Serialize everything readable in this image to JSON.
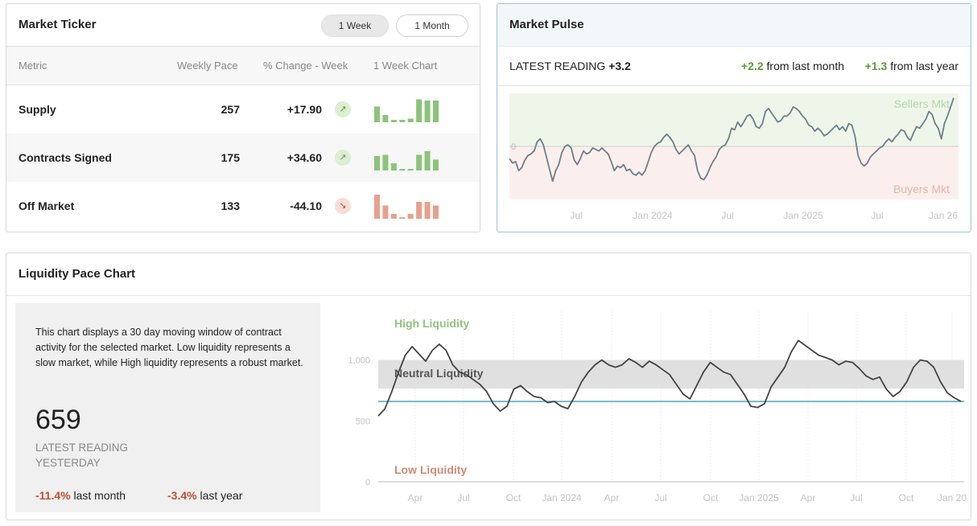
{
  "ticker": {
    "title": "Market Ticker",
    "range_buttons": [
      "1 Week",
      "1 Month"
    ],
    "columns": [
      "Metric",
      "Weekly Pace",
      "% Change - Week",
      "1 Week Chart"
    ],
    "rows": [
      {
        "metric": "Supply",
        "pace": "257",
        "change": "+17.90",
        "trend": "up",
        "bars": [
          0.65,
          0.3,
          0.1,
          0.1,
          0.15,
          0.95,
          0.9,
          0.9
        ]
      },
      {
        "metric": "Contracts Signed",
        "pace": "175",
        "change": "+34.60",
        "trend": "up",
        "bars": [
          0.6,
          0.65,
          0.3,
          0.05,
          0.05,
          0.65,
          0.8,
          0.45
        ]
      },
      {
        "metric": "Off Market",
        "pace": "133",
        "change": "-44.10",
        "trend": "down",
        "bars": [
          1.0,
          0.55,
          0.2,
          0.05,
          0.2,
          0.7,
          0.7,
          0.55
        ]
      }
    ],
    "colors": {
      "up": "#8cc37a",
      "down": "#e8a08d",
      "up_icon_bg": "#dceed4",
      "down_icon_bg": "#f7ddd5"
    }
  },
  "pulse": {
    "title": "Market Pulse",
    "latest_label": "LATEST READING",
    "latest_value": "+3.2",
    "month_value": "+2.2",
    "month_label": "from last month",
    "year_value": "+1.3",
    "year_label": "from last year",
    "chart_data": {
      "type": "line",
      "title": "Market Pulse",
      "x_tick_labels": [
        "Jul",
        "Jan 2024",
        "Jul",
        "Jan 2025",
        "Jul",
        "Jan 26"
      ],
      "y_tick_labels": [
        "0"
      ],
      "ylim": [
        -3.5,
        3.5
      ],
      "zones": [
        "Sellers Mkt",
        "Buyers Mkt"
      ],
      "values": [
        -0.8,
        -1.1,
        -1.0,
        -1.6,
        -1.4,
        -0.9,
        -0.6,
        -0.5,
        -0.3,
        0.3,
        0.5,
        0.1,
        -0.7,
        -1.5,
        -2.3,
        -1.6,
        -1.2,
        -0.4,
        0.0,
        0.1,
        -0.1,
        -0.9,
        -1.2,
        -0.8,
        -0.3,
        -0.5,
        -0.4,
        -0.1,
        -0.2,
        -0.3,
        -0.1,
        -0.3,
        -0.5,
        -1.0,
        -1.6,
        -1.3,
        -1.4,
        -1.2,
        -1.6,
        -1.5,
        -1.8,
        -1.9,
        -1.7,
        -1.9,
        -1.6,
        -1.0,
        -0.4,
        0.0,
        0.2,
        0.3,
        0.6,
        0.8,
        0.6,
        0.3,
        -0.2,
        -0.5,
        -0.3,
        -0.1,
        0.1,
        -0.3,
        -0.6,
        -1.6,
        -2.1,
        -2.2,
        -1.9,
        -1.4,
        -1.0,
        -0.7,
        -0.2,
        0.0,
        0.1,
        0.5,
        1.2,
        1.1,
        1.6,
        1.3,
        1.6,
        2.0,
        2.1,
        1.8,
        1.3,
        1.2,
        1.5,
        2.3,
        2.5,
        2.2,
        1.9,
        1.6,
        1.7,
        2.0,
        2.0,
        2.2,
        2.6,
        2.5,
        2.3,
        2.0,
        1.8,
        1.4,
        1.3,
        1.0,
        1.2,
        1.0,
        0.7,
        0.8,
        1.0,
        1.2,
        1.4,
        1.1,
        1.3,
        1.0,
        1.5,
        1.4,
        0.7,
        -0.6,
        -1.1,
        -1.3,
        -1.1,
        -0.7,
        -0.5,
        -0.3,
        -0.1,
        0.0,
        0.3,
        0.5,
        0.3,
        0.6,
        0.8,
        1.1,
        1.0,
        0.6,
        0.4,
        0.9,
        1.3,
        1.2,
        1.5,
        1.8,
        2.3,
        2.1,
        1.5,
        1.2,
        0.5,
        1.5,
        2.0,
        2.6,
        3.2
      ]
    }
  },
  "liquidity": {
    "title": "Liquidity Pace Chart",
    "description": "This chart displays a 30 day moving window of contract activity for the selected market. Low liquidity represents a slow market, while High liquidity represents a robust market.",
    "latest_value": "659",
    "latest_label": "LATEST READING",
    "latest_when": "YESTERDAY",
    "month_change": "-11.4%",
    "month_label": "last month",
    "year_change": "-3.4%",
    "year_label": "last year",
    "chart_data": {
      "type": "line",
      "title": "Liquidity Pace Chart",
      "zone_labels": [
        "High Liquidity",
        "Neutral Liquidity",
        "Low Liquidity"
      ],
      "neutral_band": [
        765,
        1000
      ],
      "reference_line": 659,
      "y_tick_labels": [
        "1,000",
        "500",
        "0"
      ],
      "ylim": [
        0,
        1400
      ],
      "x_tick_labels": [
        "Apr",
        "Jul",
        "Oct",
        "Jan 2024",
        "Apr",
        "Jul",
        "Oct",
        "Jan 2025",
        "Apr",
        "Jul",
        "Oct",
        "Jan 20"
      ],
      "values": [
        540,
        600,
        740,
        900,
        1040,
        1110,
        1050,
        990,
        1080,
        1130,
        1080,
        960,
        900,
        880,
        840,
        800,
        740,
        640,
        580,
        620,
        760,
        790,
        740,
        700,
        690,
        650,
        660,
        620,
        600,
        700,
        820,
        900,
        960,
        1000,
        960,
        940,
        960,
        1010,
        980,
        940,
        990,
        960,
        920,
        880,
        800,
        720,
        680,
        790,
        900,
        980,
        940,
        900,
        880,
        800,
        720,
        620,
        610,
        640,
        780,
        860,
        940,
        1070,
        1160,
        1120,
        1080,
        1040,
        1020,
        1000,
        960,
        990,
        980,
        930,
        870,
        840,
        860,
        760,
        700,
        740,
        820,
        940,
        1000,
        990,
        940,
        820,
        730,
        690,
        660
      ]
    }
  }
}
